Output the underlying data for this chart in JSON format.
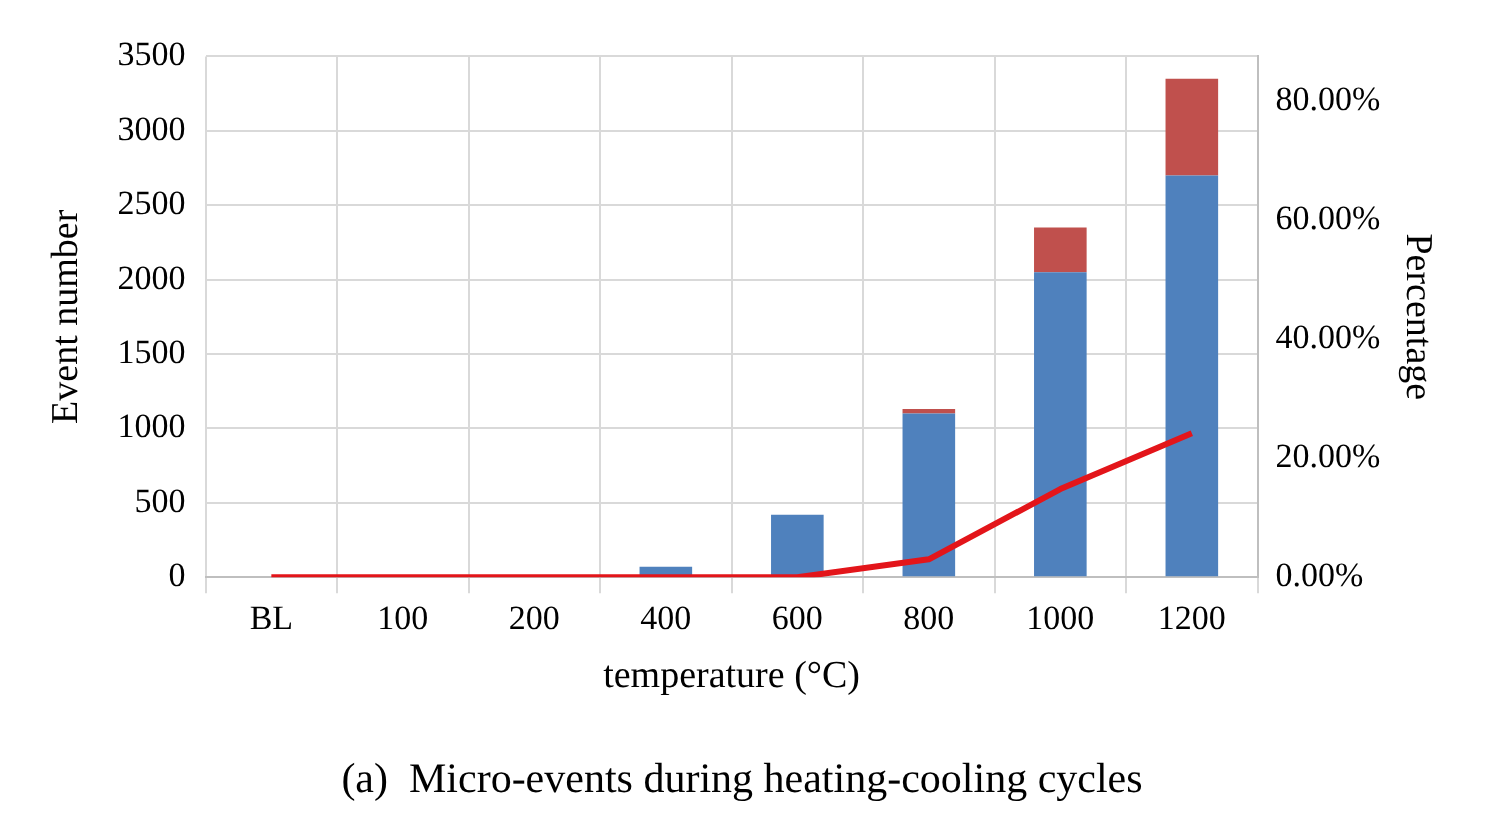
{
  "chart_data": {
    "type": "bar",
    "title": "(a)  Micro-events during heating-cooling cycles",
    "xlabel": "temperature (°C)",
    "ylabel": "Event number",
    "y2label": "Percentage",
    "categories": [
      "BL",
      "100",
      "200",
      "400",
      "600",
      "800",
      "1000",
      "1200"
    ],
    "stacked": true,
    "series": [
      {
        "color": "#4f81bd",
        "values": [
          0,
          0,
          0,
          70,
          420,
          1100,
          2050,
          2700
        ]
      },
      {
        "color": "#c0504d",
        "values": [
          0,
          0,
          0,
          0,
          0,
          30,
          300,
          650
        ]
      },
      {
        "type": "line",
        "axis": "y2",
        "color": "#e3151a",
        "values": [
          0,
          0,
          0,
          0,
          0,
          3,
          14.8,
          24.2
        ]
      }
    ],
    "ylim": [
      0,
      3500
    ],
    "yticks": [
      0,
      500,
      1000,
      1500,
      2000,
      2500,
      3000,
      3500
    ],
    "y2lim": [
      0,
      87.5
    ],
    "y2ticks": [
      {
        "value": 0,
        "label": "0.00%"
      },
      {
        "value": 20,
        "label": "20.00%"
      },
      {
        "value": 40,
        "label": "40.00%"
      },
      {
        "value": 60,
        "label": "60.00%"
      },
      {
        "value": 80,
        "label": "80.00%"
      }
    ],
    "grid": true,
    "marker": "none"
  }
}
